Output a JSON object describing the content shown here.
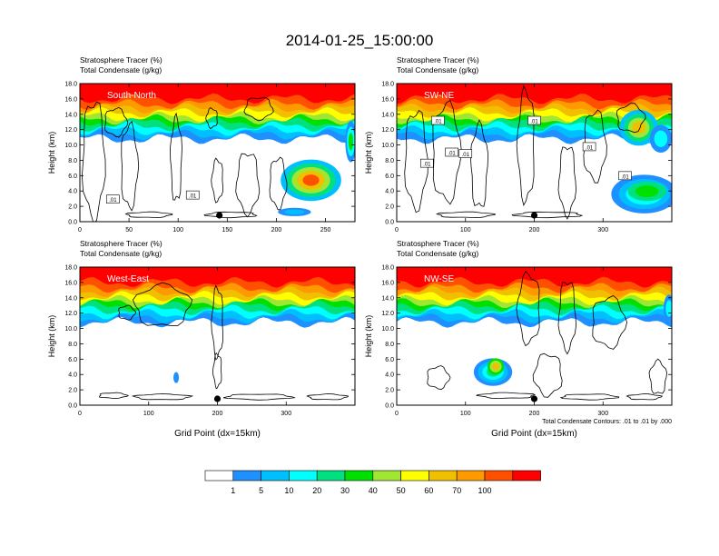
{
  "title": "2014-01-25_15:00:00",
  "chart_data": [
    {
      "type": "heatmap",
      "subtitle1": "Stratosphere Tracer   (%)",
      "subtitle2": "Total Condensate   (g/kg)",
      "label": "South-North",
      "xlabel": "",
      "ylabel": "Height (km)",
      "xlim": [
        0,
        280
      ],
      "ylim": [
        0,
        18
      ],
      "xticks": [
        "0",
        "50",
        "100",
        "150",
        "200",
        "250"
      ],
      "xtick_values": [
        0,
        50,
        100,
        150,
        200,
        250
      ],
      "yticks": [
        "0.0",
        "2.0",
        "4.0",
        "6.0",
        "8.0",
        "10.0",
        "12.0",
        "14.0",
        "16.0",
        "18.0"
      ],
      "marker_x": 142,
      "contour_labels": [
        ".01",
        ".01"
      ]
    },
    {
      "type": "heatmap",
      "subtitle1": "Stratosphere Tracer   (%)",
      "subtitle2": "Total Condensate   (g/kg)",
      "label": "SW-NE",
      "xlabel": "",
      "ylabel": "Height (km)",
      "xlim": [
        0,
        400
      ],
      "ylim": [
        0,
        18
      ],
      "xticks": [
        "0",
        "100",
        "200",
        "300"
      ],
      "xtick_values": [
        0,
        100,
        200,
        300
      ],
      "yticks": [
        "0.0",
        "2.0",
        "4.0",
        "6.0",
        "8.0",
        "10.0",
        "12.0",
        "14.0",
        "16.0",
        "18.0"
      ],
      "marker_x": 200,
      "contour_labels": [
        ".01",
        ".01",
        ".01",
        ".01",
        ".01",
        ".01",
        ".01"
      ]
    },
    {
      "type": "heatmap",
      "subtitle1": "Stratosphere Tracer   (%)",
      "subtitle2": "Total Condensate   (g/kg)",
      "label": "West-East",
      "xlabel": "Grid Point (dx=15km)",
      "ylabel": "Height (km)",
      "xlim": [
        0,
        400
      ],
      "ylim": [
        0,
        18
      ],
      "xticks": [
        "0",
        "100",
        "200",
        "300"
      ],
      "xtick_values": [
        0,
        100,
        200,
        300
      ],
      "yticks": [
        "0.0",
        "2.0",
        "4.0",
        "6.0",
        "8.0",
        "10.0",
        "12.0",
        "14.0",
        "16.0",
        "18.0"
      ],
      "marker_x": 200,
      "contour_labels": []
    },
    {
      "type": "heatmap",
      "subtitle1": "Stratosphere Tracer   (%)",
      "subtitle2": "Total Condensate   (g/kg)",
      "label": "NW-SE",
      "xlabel": "Grid Point (dx=15km)",
      "ylabel": "Height (km)",
      "xlim": [
        0,
        400
      ],
      "ylim": [
        0,
        18
      ],
      "xticks": [
        "0",
        "100",
        "200",
        "300"
      ],
      "xtick_values": [
        0,
        100,
        200,
        300
      ],
      "yticks": [
        "0.0",
        "2.0",
        "4.0",
        "6.0",
        "8.0",
        "10.0",
        "12.0",
        "14.0",
        "16.0",
        "18.0"
      ],
      "marker_x": 200,
      "contour_labels": [],
      "note": "Total Condensate Contours: .01 to .01 by .000"
    }
  ],
  "colorbar": {
    "labels": [
      "1",
      "5",
      "10",
      "20",
      "30",
      "40",
      "50",
      "60",
      "70",
      "100"
    ],
    "colors": [
      "#ffffff",
      "#1e90ff",
      "#00bfff",
      "#00ffff",
      "#00e080",
      "#00e000",
      "#a0e632",
      "#ffff00",
      "#f0c000",
      "#ff9900",
      "#ff5000",
      "#ff0000"
    ]
  }
}
